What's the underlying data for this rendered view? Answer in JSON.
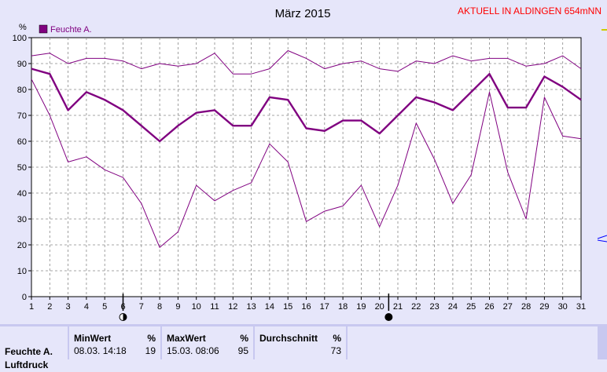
{
  "header": {
    "station": "AKTUELL IN ALDINGEN 654mNN",
    "station_color": "#ff0000"
  },
  "chart_data": {
    "type": "line",
    "title": "März 2015",
    "ylabel": "%",
    "ylim": [
      0,
      100
    ],
    "yticks": [
      0,
      10,
      20,
      30,
      40,
      50,
      60,
      70,
      80,
      90,
      100
    ],
    "xlim": [
      1,
      31
    ],
    "x": [
      1,
      2,
      3,
      4,
      5,
      6,
      7,
      8,
      9,
      10,
      11,
      12,
      13,
      14,
      15,
      16,
      17,
      18,
      19,
      20,
      21,
      22,
      23,
      24,
      25,
      26,
      27,
      28,
      29,
      30,
      31
    ],
    "grid": true,
    "legend": "top-left",
    "legend_label": "Feuchte A.",
    "series_color": "#800080",
    "series": [
      {
        "role": "max",
        "values": [
          93,
          94,
          90,
          92,
          92,
          91,
          88,
          90,
          89,
          90,
          94,
          86,
          86,
          88,
          95,
          92,
          88,
          90,
          91,
          88,
          87,
          91,
          90,
          93,
          91,
          92,
          92,
          89,
          90,
          93,
          88
        ]
      },
      {
        "role": "mean",
        "values": [
          88,
          86,
          72,
          79,
          76,
          72,
          66,
          60,
          66,
          71,
          72,
          66,
          66,
          77,
          76,
          65,
          64,
          68,
          68,
          63,
          70,
          77,
          75,
          72,
          79,
          86,
          73,
          73,
          85,
          81,
          76
        ]
      },
      {
        "role": "min",
        "values": [
          84,
          70,
          52,
          54,
          49,
          46,
          36,
          19,
          25,
          43,
          37,
          41,
          44,
          59,
          52,
          29,
          33,
          35,
          43,
          27,
          43,
          67,
          53,
          36,
          47,
          79,
          48,
          30,
          77,
          62,
          61
        ]
      }
    ],
    "markers": [
      {
        "x": 6,
        "symbol": "first-quarter-moon"
      },
      {
        "x": 20.5,
        "symbol": "new-moon"
      }
    ]
  },
  "footer": {
    "row_label": "Feuchte A.",
    "row_label_2": "Luftdruck",
    "min": {
      "head": "MinWert",
      "unit": "%",
      "when": "08.03.  14:18",
      "value": "19"
    },
    "max": {
      "head": "MaxWert",
      "unit": "%",
      "when": "15.03.  08:06",
      "value": "95"
    },
    "avg": {
      "head": "Durchschnitt",
      "unit": "%",
      "value": "73"
    }
  }
}
